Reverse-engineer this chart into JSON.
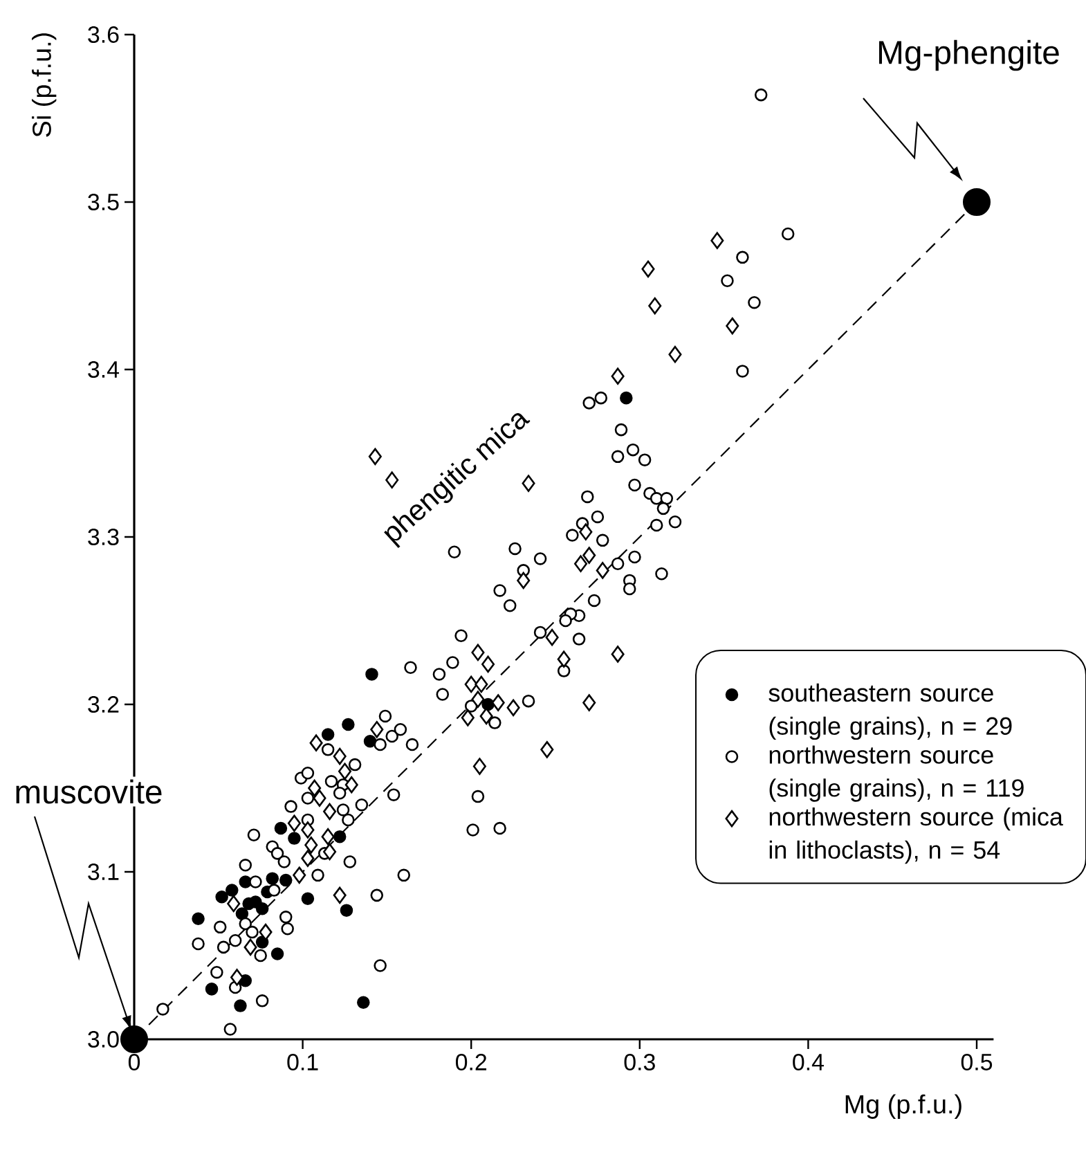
{
  "chart_data": {
    "type": "scatter",
    "xlabel": "Mg  (p.f.u.)",
    "ylabel": "Si  (p.f.u.)",
    "xlim": [
      0,
      0.51
    ],
    "ylim": [
      3.0,
      3.6
    ],
    "xticks": [
      0,
      0.1,
      0.2,
      0.3,
      0.4,
      0.5
    ],
    "yticks": [
      {
        "value": 3.0,
        "label": "3.0"
      },
      {
        "value": 3.1,
        "label": "3.1"
      },
      {
        "value": 3.2,
        "label": "3.2"
      },
      {
        "value": 3.3,
        "label": "3.3"
      },
      {
        "value": 3.4,
        "label": "3.4"
      },
      {
        "value": 3.5,
        "label": "3.5"
      },
      {
        "value": 3.6,
        "label": "3.6"
      }
    ],
    "legend": "right",
    "series": [
      {
        "type": "line",
        "line_style": "dashed",
        "marker": "circle",
        "color": "#000000",
        "x": [
          0,
          0.5
        ],
        "values": [
          3.0,
          3.5
        ]
      },
      {
        "name": "southeastern source (single grains), n = 29",
        "marker": "circle",
        "color": "#000000",
        "x": [
          0.141,
          0.127,
          0.115,
          0.14,
          0.087,
          0.095,
          0.122,
          0.082,
          0.09,
          0.103,
          0.126,
          0.052,
          0.058,
          0.066,
          0.072,
          0.068,
          0.076,
          0.038,
          0.076,
          0.085,
          0.066,
          0.046,
          0.063,
          0.136,
          0.292,
          0.21,
          0.064,
          0.079
        ],
        "values": [
          3.218,
          3.188,
          3.182,
          3.178,
          3.126,
          3.12,
          3.121,
          3.096,
          3.095,
          3.084,
          3.077,
          3.085,
          3.089,
          3.094,
          3.082,
          3.081,
          3.078,
          3.072,
          3.058,
          3.051,
          3.035,
          3.03,
          3.02,
          3.022,
          3.383,
          3.2,
          3.075,
          3.088
        ]
      },
      {
        "name": "northwestern source (single grains), n = 119",
        "marker": "circle",
        "color": "#ffffff",
        "x": [
          0.149,
          0.153,
          0.146,
          0.115,
          0.131,
          0.099,
          0.103,
          0.117,
          0.124,
          0.122,
          0.103,
          0.135,
          0.154,
          0.093,
          0.124,
          0.127,
          0.103,
          0.071,
          0.082,
          0.085,
          0.089,
          0.113,
          0.109,
          0.128,
          0.066,
          0.072,
          0.083,
          0.144,
          0.16,
          0.09,
          0.091,
          0.051,
          0.066,
          0.038,
          0.06,
          0.053,
          0.075,
          0.07,
          0.049,
          0.06,
          0.076,
          0.057,
          0.017,
          0.146,
          0.27,
          0.277,
          0.289,
          0.287,
          0.296,
          0.303,
          0.297,
          0.306,
          0.31,
          0.316,
          0.314,
          0.31,
          0.321,
          0.269,
          0.275,
          0.266,
          0.26,
          0.278,
          0.287,
          0.297,
          0.294,
          0.294,
          0.313,
          0.273,
          0.264,
          0.259,
          0.256,
          0.264,
          0.255,
          0.241,
          0.226,
          0.231,
          0.241,
          0.217,
          0.223,
          0.19,
          0.194,
          0.189,
          0.181,
          0.164,
          0.183,
          0.234,
          0.2,
          0.214,
          0.204,
          0.158,
          0.165,
          0.201,
          0.217,
          0.372,
          0.388,
          0.361,
          0.352,
          0.368,
          0.361
        ],
        "values": [
          3.193,
          3.181,
          3.176,
          3.173,
          3.164,
          3.156,
          3.159,
          3.154,
          3.152,
          3.147,
          3.144,
          3.14,
          3.146,
          3.139,
          3.137,
          3.131,
          3.131,
          3.122,
          3.115,
          3.111,
          3.106,
          3.111,
          3.098,
          3.106,
          3.104,
          3.094,
          3.089,
          3.086,
          3.098,
          3.073,
          3.066,
          3.067,
          3.069,
          3.057,
          3.059,
          3.055,
          3.05,
          3.064,
          3.04,
          3.031,
          3.023,
          3.006,
          3.018,
          3.044,
          3.38,
          3.383,
          3.364,
          3.348,
          3.352,
          3.346,
          3.331,
          3.326,
          3.323,
          3.323,
          3.317,
          3.307,
          3.309,
          3.324,
          3.312,
          3.308,
          3.301,
          3.298,
          3.284,
          3.288,
          3.274,
          3.269,
          3.278,
          3.262,
          3.253,
          3.254,
          3.25,
          3.239,
          3.22,
          3.243,
          3.293,
          3.28,
          3.287,
          3.268,
          3.259,
          3.291,
          3.241,
          3.225,
          3.218,
          3.222,
          3.206,
          3.202,
          3.199,
          3.189,
          3.145,
          3.185,
          3.176,
          3.125,
          3.126,
          3.564,
          3.481,
          3.467,
          3.453,
          3.44,
          3.399
        ]
      },
      {
        "name": "northwestern source (mica in lithoclasts), n = 54",
        "marker": "diamond",
        "color": "#ffffff",
        "x": [
          0.346,
          0.305,
          0.309,
          0.355,
          0.321,
          0.287,
          0.143,
          0.153,
          0.234,
          0.268,
          0.27,
          0.265,
          0.278,
          0.231,
          0.248,
          0.255,
          0.287,
          0.204,
          0.21,
          0.2,
          0.206,
          0.204,
          0.216,
          0.225,
          0.198,
          0.209,
          0.27,
          0.245,
          0.205,
          0.144,
          0.108,
          0.122,
          0.125,
          0.129,
          0.107,
          0.11,
          0.116,
          0.095,
          0.103,
          0.115,
          0.105,
          0.116,
          0.103,
          0.098,
          0.059,
          0.078,
          0.069,
          0.061,
          0.122
        ],
        "values": [
          3.477,
          3.46,
          3.438,
          3.426,
          3.409,
          3.396,
          3.348,
          3.334,
          3.332,
          3.303,
          3.289,
          3.284,
          3.28,
          3.274,
          3.24,
          3.227,
          3.23,
          3.231,
          3.224,
          3.212,
          3.212,
          3.203,
          3.201,
          3.198,
          3.192,
          3.193,
          3.201,
          3.173,
          3.163,
          3.185,
          3.177,
          3.169,
          3.16,
          3.152,
          3.15,
          3.144,
          3.136,
          3.129,
          3.125,
          3.121,
          3.116,
          3.112,
          3.108,
          3.098,
          3.081,
          3.064,
          3.055,
          3.037,
          3.086
        ]
      }
    ],
    "annotations": [
      "muscovite",
      "Mg-phengite",
      "phengitic mica"
    ]
  }
}
